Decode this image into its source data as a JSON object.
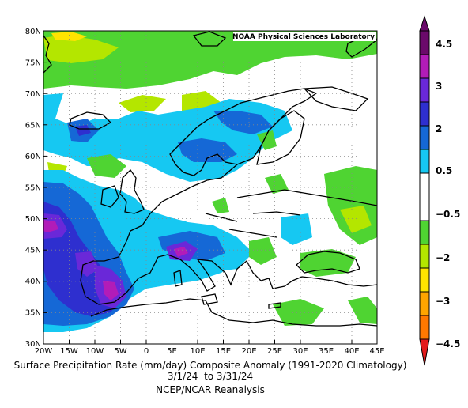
{
  "credit": "NOAA Physical Sciences Laboratory",
  "caption": {
    "title": "Surface Precipitation Rate (mm/day) Composite Anomaly (1991-2020 Climatology)",
    "dates": "3/1/24  to 3/31/24",
    "source": "NCEP/NCAR Reanalysis"
  },
  "map": {
    "projection": "equirectangular",
    "lon_range": [
      -20,
      45
    ],
    "lat_range": [
      30,
      80
    ],
    "lon_ticks": [
      "20W",
      "15W",
      "10W",
      "5W",
      "0",
      "5E",
      "10E",
      "15E",
      "20E",
      "25E",
      "30E",
      "35E",
      "40E",
      "45E"
    ],
    "lat_ticks": [
      "30N",
      "35N",
      "40N",
      "45N",
      "50N",
      "55N",
      "60N",
      "65N",
      "70N",
      "75N",
      "80N"
    ],
    "gridlines": true,
    "land_outline_color": "#000000",
    "regions": {
      "wet_iberia_atlantic": {
        "level": "2 to 4",
        "color": "#6a28d8"
      },
      "wet_alps_italy": {
        "level": "2 to 4",
        "color": "#6a28d8"
      },
      "wet_scandinavia": {
        "level": "1 to 2",
        "color": "#1568d6"
      },
      "dry_arctic": {
        "level": "-2 to -0.5",
        "color": "#4fd432"
      },
      "dry_eastern_europe": {
        "level": "-2 to -0.5",
        "color": "#4fd432"
      }
    }
  },
  "colorbar": {
    "labels": [
      "4.5",
      "3",
      "2",
      "0.5",
      "−0.5",
      "−2",
      "−3",
      "−4.5"
    ],
    "colors_top_to_bottom": [
      "#6b0a6b",
      "#b21cb8",
      "#6a28d8",
      "#2e2fcf",
      "#1568d6",
      "#16c8f2",
      "#ffffff",
      "#4fd432",
      "#b4e600",
      "#ffe400",
      "#ffa500",
      "#ff7800",
      "#e31a1c"
    ]
  }
}
